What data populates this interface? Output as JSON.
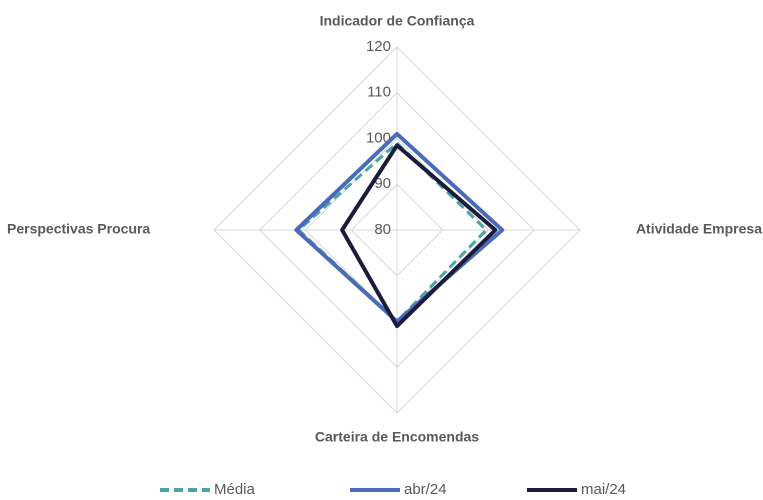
{
  "chart_data": {
    "type": "radar",
    "categories": [
      "Indicador de Confiança",
      "Atividade Empresa",
      "Carteira de Encomendas",
      "Perspectivas Procura"
    ],
    "series": [
      {
        "name": "Média",
        "color": "#4ba3a8",
        "dashed": true,
        "values": [
          99,
          99.5,
          100,
          101.5
        ]
      },
      {
        "name": "abr/24",
        "color": "#4a6bb8",
        "values": [
          101,
          103,
          100,
          102
        ]
      },
      {
        "name": "mai/24",
        "color": "#1b1b3d",
        "values": [
          98.5,
          101.5,
          101,
          92
        ]
      }
    ],
    "rlim": [
      80,
      120
    ],
    "rticks": [
      80,
      90,
      100,
      110,
      120
    ],
    "grid": true,
    "legend": "bottom"
  }
}
